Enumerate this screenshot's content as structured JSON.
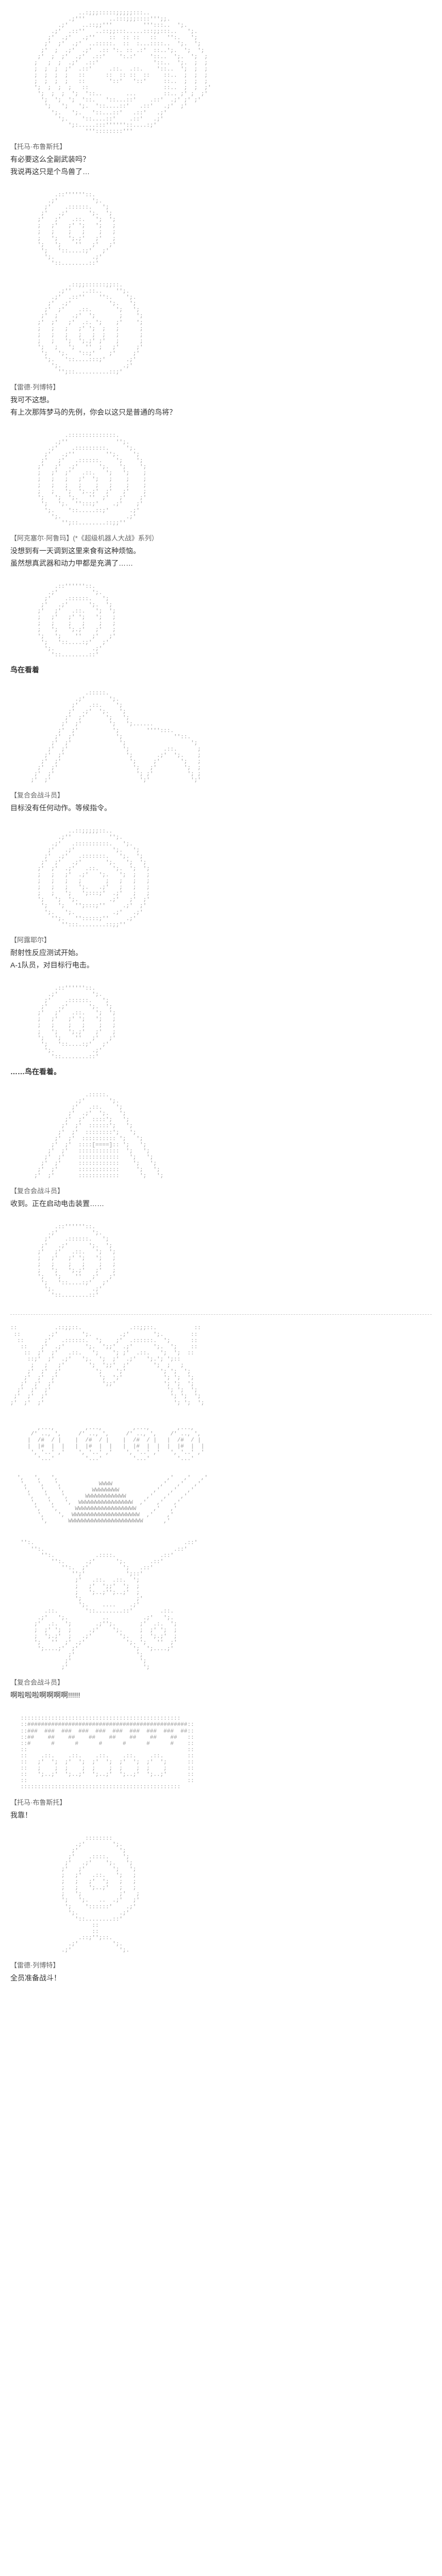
{
  "blocks": [
    {
      "ascii": "                    ..:;;;:::::;;;;;:::..\n                 .;'''       ..:::;;;::::''';;.\n              .;'    ..::;;'''         ''':::..  ';.\n            .;'  .::''   ..::;;:::.....:::;;:::..   ';.\n           ;'  .;'   .;''    ::  :: ::   ::   '':.   ';\n          ;'  ;'  .;'  ..:::::.  ::  :...::::..  ';.  ';\n         ;'  ;  .;'  .;'  .:: ':. :: .:'  ::..';.  ';  ';\n        ;'  ;  ;'  .;'  .::'    ':.:'    '::..  ';.  ';  ;\n       ;   ;  ;  .;'  .::'                '::..  ';.  ;  ;\n       ;  ;  ;  ;'  .::'     .::.  .::.    '::..  ';  ;  ;\n       ;  ;  ;  ;   ::      ::  :: ::  ::    ::..  ;  ;  ;\n       ;  ;  ;  ;   ::       '::'   '::'     ::..  ;  ;  ;\n       ';  ;  ;  ;   ::                      ::..  ;  ;  ;'\n        ';  ;  ;  ';  '::..       ...        ::.. ;' ;  ;'\n         ';  ';  ';  '::.   '::...::'    .::'  .;' ;' ;'\n          ';   ';   ';.  '::....::'   .::'   .;'  ;'\n            ';.   ';.   '::...::'   .::'   .;'\n              ';.    '::....::'    .::'   .;'\n                 ';:.....:::''''''::....:;'\n                      '''::::::::'''",
      "speaker": "【托马·布鲁斯托】",
      "lines": [
        "有必要这么全副武装吗？",
        "我说再这只是个鸟兽了…"
      ]
    },
    {
      "ascii": "             .::''''''::.\n           .;'          ';.\n          ;'    .::::::.   ';\n         ;'   .;'      ';.  ';\n        ;'   ;'   .::.   ';  ';\n        ;   ;'   ;' ';   ';   ;\n        ;   ;    ;   ;    ;   ;\n        ;   ';   ';.;'   ;'   ;\n        ';   ';    ''   ;'   ;'\n         ';   '::....:;'   ;'\n          ';.           .;'\n            '::........::'",
      "speaker": "",
      "lines": []
    },
    {
      "ascii": "                 .::;;::::::;;::.\n              .;''   ..::..    '';.\n            .;'  .::''    '':.    ';.\n           ;'  .;'           ';.   ';\n          ;'  ;'    .::.       ';   ';\n         ;'  ;    .;'  ';       ;    ';\n        ;'  ;'   ;'  .:. ';    ;'    ';\n        ;   ;   ;   ;' ';  ;   ;      ;\n        ;   ;   ;   ;   ;  ;   ;      ;\n        ;   ;   ';  ';.;' ;'   ;      ;\n        ';   ;   ';   ''  ;   ;'     ;'\n         ';   ';.   '::;'    ;'     ;'\n          ';.   '::....:::;'      .;'\n            ';.                  .;'\n              '';::..........::;'",
      "speaker": "【雷德·列博特】",
      "lines": [
        "我可不这想。",
        "有上次那阵梦马的先例，你会以这只是普通的鸟将？"
      ]
    },
    {
      "ascii": "                .::::::::::::::.\n             .;''              '';.\n           .;'    .:::::::::.     ';.\n          ;'   .;''         '';.    ';\n         ;'   ;'   .::::::.    ';    ';\n        ;'   ;'  .;'      ';.   ';    ';\n        ;   ;'  ;'   .::.   ';   ';    ;\n        ;   ;   ;   ;'  ';   ;    ;    ;\n        ;   ;   ;   ;    ;   ;    ;    ;\n        ;   ;   ';  ';..;'  ;'   ;'    ;\n        ';   ';  ';.   ''  ;'   ;'    ;'\n         ';   ';.  '':::;'    .;'    ;'\n          ';.    '::.....::;'      .;'\n            ';.                   .;'\n               '';::........::;;''",
      "speaker": "【阿克塞尔·阿鲁玛】(*《超级机器人大战》系列）",
      "lines": [
        "没想到有一天调到这里来食有这种烦恼。",
        "虽然想真武器和动力甲都是充满了……"
      ]
    },
    {
      "ascii": "             .::''''''::.\n           .;'          ';.\n          ;'    .::::::.   ';\n         ;'   .;'      ';.  ';\n        ;'   ;'   .::.   ';  ';\n        ;   ;'   ;' ';   ';   ;\n        ;   ;    ;   ;    ;   ;\n        ;   ';   ';.;'   ;'   ;\n        ';   ';    ''   ;'   ;'\n         ';   '::....:;'   ;'\n          ';.           .;'\n            '::........::'",
      "speaker": "",
      "lines": [
        {
          "text": "鸟在看着",
          "bold": true
        }
      ]
    },
    {
      "ascii": "                      .:::::.\n                   .;'       ';.\n                  ;'   .::.    ';\n                 ;'  .;'  ';.   ';\n                ;'  ;'      ';   ';\n               ;'  ;'        ';   ';......\n              ;'  ;'          ';        '''':::.\n             ;'  ;'            ';               ''::.\n            ;'  ;'              ';                   ';\n           ;'  ;'                ';          .::.      ;\n          ;'  ;'                  ';       .;'  ';.    ;\n         ;'  ;'                    ';     ;'      ';   ;\n        ;'  ;'                      ';   ;'        ';  ;\n       ;'  ;'                        '; ;'          '; ;\n      ;'  ;'                          ';'            ';'",
      "speaker": "【复合会战斗员】",
      "lines": [
        "目标没有任何动作。等候指令。"
      ]
    },
    {
      "ascii": "                 ..::;;;;;::..\n              .;''           '';.\n            .;'   .::::::::::.   ';.\n           ;'   .;'           ';.   ';\n          ;'  .;'   .:::::::.   ';.  ';\n         ;'  ;'   .;'       ';.   ';  ';\n        ;'  ;'  .;'   .::.    ';.  ';  ';\n        ;   ;   ;'  .;'   ';.   ';  ;   ;\n        ;   ;   ;   ;       ;   ;   ;   ;\n        ;   ;   ;   ';.   .;'   ;   ;   ;\n        ;   ;   ';   ';:::;'  .;'   ;   ;\n        ';   ';  ';.         .;'   ;'  ;'\n         ';   ';   '';:::;''     .;'  ;'\n          ';.   ';.           .;'   .;'\n            '';.   '':::::;''     .;'\n               '':::........::;;''",
      "speaker": "【阿露耶尔】",
      "lines": [
        "耐射性反应测试开始。",
        "A-1队员，对目标行电击。"
      ]
    },
    {
      "ascii": "             .::''''''::.\n           .;'          ';.\n          ;'    .::::::.   ';\n         ;'   .;'      ';.  ';\n        ;'   ;'   .::.   ';  ';\n        ;   ;'   ;' ';   ';   ;\n        ;   ;    ;   ;    ;   ;\n        ;   ';   ';.;'   ;'   ;\n        ';   ';    ''   ;'   ;'\n         ';   '::....:;'   ;'\n          ';.           .;'\n            '::........::'",
      "speaker": "",
      "lines": [
        {
          "text": "……鸟在看着。",
          "bold": true
        }
      ]
    },
    {
      "ascii": "                      .:::::.\n                   .;'       ';.\n                  ;'   .::.    ';\n                 ;'  .;'  ';.   ';\n                ;'  ;'  ::::';   ';\n               ;'  ;'  ::::::';   ';\n              ;'  ;'  ::::::::';   ';\n             ;'  ;'  :::::::::: ';   ';\n            ;'  ;'  ::::[====]:: ';   ';\n           ;'  ;'   ::::::::::::  ';   ';\n          ;'  ;'    ::::::::::::   ';   ';\n         ;'  ;'     ::::::::::::    ';   ';\n        ;'  ;'      ::::::::::::     ';   ';\n       ;'  ;'       ::::::::::::      ';   ';",
      "speaker": "【复合会战斗员】",
      "lines": [
        "收到。正在启动电击装置……"
      ]
    },
    {
      "ascii": "             .::''''''::.\n           .;'          ';.\n          ;'    .::::::.   ';\n         ;'   .;'      ';.  ';\n        ;'   ;'   .::.   ';  ';\n        ;   ;'   ;' ';   ';   ;\n        ;   ;    ;   ;    ;   ;\n        ;   ';   ';.;'   ;'   ;\n        ';   ';    ''   ;'   ;'\n         ';   '::....:;'   ;'\n          ';.           .;'\n            '::........::'",
      "speaker": "",
      "lines": []
    },
    {
      "divider": true
    },
    {
      "ascii": "::           .::;;::.              .::;;::.           ::\n ::        .;'       ';.        .;'       ';.        ::\n  ::      ;'   .::::::.  ';    ;'  .::::::.  ';      ::\n   ::    ;'  .;'      ';.  ';;'  .;'      ';.  ';    ::\n    ::  ;'  ;'   .::.   ';    '; ;'  .::.   ';  ';  ::\n     ::;'  ;'  .;'   ';.  ';  ;'  .;'   ';.'; ';:: \n      ;   ;   ;'       ';  ';;'  ;'       ';  ;   ;\n     ;'  ;'  ;'          ';    ';'          '; ';  ';\n    ;'  ;'  ;'            ';  ';'            '; ';  ';\n   ;'  ;'  ;'              ';;'              '; ';  ';\n  ;'  ;'  ;'                                  '; ';  ';\n ;'  ;'  ;'                                    '; ';  ';\n;'  ;'  ;'                                      '; ';  ';\n                                                         \n                                                         \n                                                         \n        ,...,         ,...,         ,...,        ,...,\n      /' .., ',     /' .., ',     /' .., ',    /' .., ',\n     |  /#  / |    |  /#  / |    |  /#  / |   |  /#  / |\n     |  |#  |  |   |  |#  |  |   |  |#  |  |  |  |#  |  |\n      ', '..' ,'    ', '..' ,'    ', '..' ,'   ', '..' ,'\n        '...'         '...'         '...'        '...'\n                                                         \n                                                         \n  ',   ',   ',                                ,'   ,'   ,'\n   ',   ',   ',           WWWW              ,'   ,'   ,'\n    ',   ',   ',        WWWWWWWW          ,'   ,'   ,'\n     ',   ',   ',     WWWWWWWWWWWW      ,'   ,'   ,'\n      ',   ',   ',  WWWWWWWWWWWWWWWW  ,'   ,'   ,'\n       ',   ',     WWWWWWWWWWWWWWWWWW     ,'   ,'\n        ',    ',  WWWWWWWWWWWWWWWWWWWW  ,'    ,'\n         ',      WWWWWWWWWWWWWWWWWWWWWW      ,'",
      "speaker": "",
      "lines": []
    },
    {
      "ascii": "   '':.                                            .::'\n      '':.                                      .::'\n         '':.            .::::.             .::'\n            '':.      .;'      ';.       .::'\n               '':.  ;'          ';   .::'\n                  '';'            ';::'\n                   ;'   .::.  .::.  ';\n                   ;   ;'  ';;'  ';  ;\n                   ;   ';..;'';..;'  ;\n                   ';                ;'\n                    ';.    ....    .;'\n          .::.        '::........::'        .::.\n        .;'   ';.          ..          .;'   ';.\n       ;'  .:.  ';       .;'';.       ;'  .:.  ';\n       ;  ;' ';  ;     .;'    ';.     ;  ;' ';  ;\n       ;  ';.;'  ;   .;'        ';.   ;  ';.;'  ;\n       ';   ''  ;' .;'            ';. ';   ''  ;'\n        ';....;'  ;'                ';  ';....;'\n                 ;'                  ';\n                ;'                    ';\n               ;'                      ';",
      "speaker": "【复合会战斗员】",
      "lines": [
        "啊啦啦啦啊啊啊啊!!!!!!"
      ]
    },
    {
      "ascii": "   :::::::::::::::::::::::::::::::::::::::::::::::\n   ::###############################################::\n   ::###  ###  ###  ###  ###  ###  ###  ###  ###  ##::\n   ::##    ##    ##    ##    ##    ##    ##    ##   ::\n   ::#      #      #      #      #      #      #    ::\n   ::                                               ::\n   ::    .::.    .::.    .::.    .::.    .::.       ::\n   ::   ;'  ';  ;'  ';  ;'  ';  ;'  ';  ;'  ';      ::\n   ::   ;    ;  ;    ;  ;    ;  ;    ;  ;    ;      ::\n   ::   ';..;'  ';..;'  ';..;'  ';..;'  ';..;'      ::\n   ::                                               ::\n   :::::::::::::::::::::::::::::::::::::::::::::::",
      "speaker": "【托马·布鲁斯托】",
      "lines": [
        "我靠！"
      ]
    },
    {
      "ascii": "                      ::::::::\n                   .;'        ';.\n                  ;'            ';\n                 ;'    .::::.    ';\n                ;'   .;'    ';.   ';\n               ;'   ;'        ';   ';\n               ;   ;'   .::.   ';   ;\n               ;   ;   ;'  ';   ;   ;\n               ;   ;   ';..;'   ;   ;\n               ;   ';           ;'   ;\n               ';   ';.   ..  .;'   ;'\n                ';    '::::::'    .;'\n                 ';.            .;'\n                   '::........::'\n                        ::\n                        ::\n                    .::;'';::.\n                 .;'          ';.\n               .;'              ';.",
      "speaker": "【雷德·列博特】",
      "lines": [
        "全员准备战斗！"
      ]
    }
  ]
}
